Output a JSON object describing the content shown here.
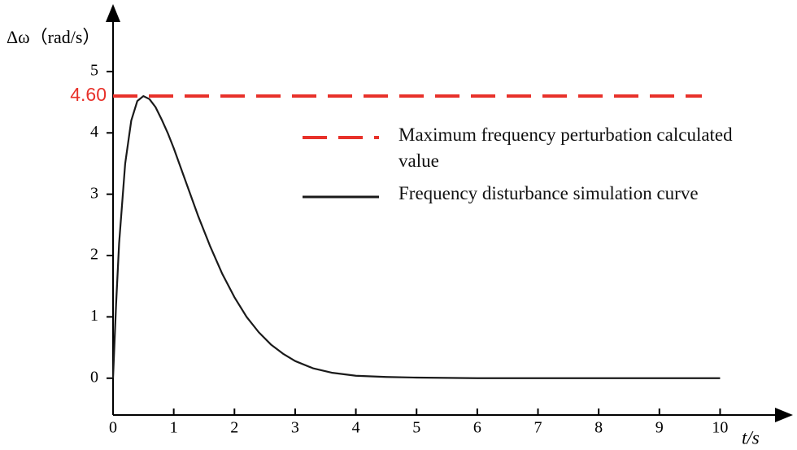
{
  "chart_data": {
    "type": "line",
    "ylabel": "Δω（rad/s）",
    "xlabel": "t/s",
    "x": [
      0,
      0.05,
      0.1,
      0.2,
      0.3,
      0.4,
      0.5,
      0.6,
      0.7,
      0.8,
      0.9,
      1,
      1.2,
      1.4,
      1.6,
      1.8,
      2,
      2.2,
      2.4,
      2.6,
      2.8,
      3,
      3.3,
      3.6,
      4,
      4.5,
      5,
      6,
      7,
      8,
      9,
      10
    ],
    "series": [
      {
        "name": "Frequency disturbance simulation curve",
        "color": "#1a1a1a",
        "values": [
          0,
          1.2,
          2.2,
          3.5,
          4.2,
          4.52,
          4.6,
          4.55,
          4.42,
          4.22,
          4.0,
          3.75,
          3.2,
          2.65,
          2.15,
          1.7,
          1.32,
          1.0,
          0.75,
          0.55,
          0.4,
          0.28,
          0.16,
          0.09,
          0.04,
          0.02,
          0.01,
          0,
          0,
          0,
          0,
          0
        ]
      }
    ],
    "reference_lines": [
      {
        "name": "Maximum frequency perturbation calculated value",
        "value": 4.6,
        "value_label": "4.60",
        "color": "#e8312a"
      }
    ],
    "xlim": [
      0,
      11.2
    ],
    "ylim": [
      -0.6,
      6.1
    ],
    "xticks": [
      0,
      1,
      2,
      3,
      4,
      5,
      6,
      7,
      8,
      9,
      10
    ],
    "yticks": [
      0,
      1,
      2,
      3,
      4,
      5
    ]
  }
}
